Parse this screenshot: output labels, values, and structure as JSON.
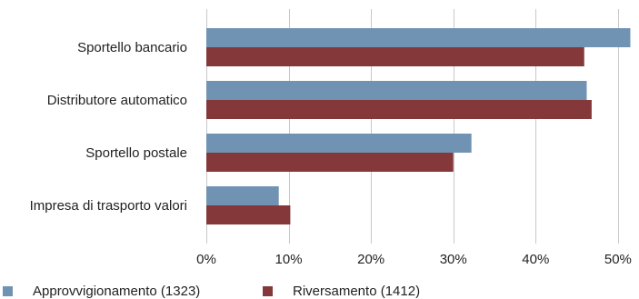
{
  "chart_data": {
    "type": "bar",
    "orientation": "horizontal",
    "title": "",
    "xlabel": "",
    "ylabel": "",
    "categories": [
      "Sportello bancario",
      "Distributore automatico",
      "Sportello postale",
      "Impresa di trasporto valori"
    ],
    "series": [
      {
        "name": "Approvvigionamento (1323)",
        "color": "#7093b3",
        "values": [
          51.5,
          46.2,
          32.2,
          8.8
        ]
      },
      {
        "name": "Riversamento (1412)",
        "color": "#84383a",
        "values": [
          45.9,
          46.8,
          30.0,
          10.2
        ]
      }
    ],
    "xlim": [
      0,
      52
    ],
    "xticks": [
      0,
      10,
      20,
      30,
      40,
      50
    ],
    "xtick_labels": [
      "0%",
      "10%",
      "20%",
      "30%",
      "40%",
      "50%"
    ],
    "grid": "vertical",
    "legend_position": "bottom-left"
  }
}
